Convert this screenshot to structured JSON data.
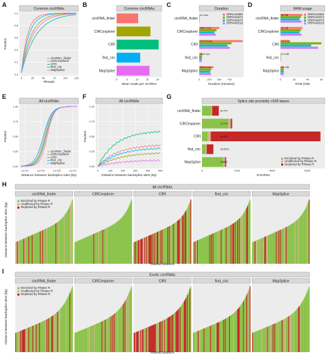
{
  "panels": {
    "A": {
      "letter": "A",
      "strip": "Common circRNAs",
      "ylabel": "Fraction",
      "xlabel": "#Reads",
      "yticks": [
        "0.0",
        "0.2",
        "0.4",
        "0.6",
        "0.8",
        "1.0"
      ],
      "xticks": [
        "0",
        "25",
        "50",
        "75",
        "100",
        "125"
      ],
      "legend": [
        "circRNA_finder",
        "CIRCexplorer",
        "CIRI",
        "find_circ",
        "MapSplice"
      ]
    },
    "B": {
      "letter": "B",
      "strip": "Common circRNAs",
      "xlabel": "Mean reads per circRNA",
      "categories": [
        "circRNA_finder",
        "CIRCexplorer",
        "CIRI",
        "find_circ",
        "MapSplice"
      ],
      "xticks": [
        "0",
        "5",
        "10",
        "15",
        "20"
      ]
    },
    "C": {
      "letter": "C",
      "strip": "Duration",
      "xlabel": "Duration (minutes)",
      "categories": [
        "circRNA_finder",
        "CIRCexplorer",
        "CIRI",
        "find_circ",
        "MapSplice"
      ],
      "xticks": [
        "0",
        "250",
        "500",
        "750"
      ],
      "bar_labels": [
        "4.2 min",
        "498.2 min",
        "1074.8 min",
        "78.9 min",
        "354.3 min"
      ],
      "legend": [
        "SRR444655",
        "SRR444674",
        "SRR444975",
        "SRR445016"
      ]
    },
    "D": {
      "letter": "D",
      "strip": "RAM usage",
      "xlabel": "RAM (GB)",
      "categories": [
        "circRNA_finder",
        "CIRCexplorer",
        "CIRI",
        "find_circ",
        "MapSplice"
      ],
      "xticks": [
        "0",
        "20",
        "40",
        "60"
      ],
      "bar_labels": [
        "32 GB",
        "32 GB",
        "12.3 GB",
        "0.4 GB",
        "4.9 GB"
      ],
      "legend": [
        "SRR444655",
        "SRR444674",
        "SRR444975",
        "SRR445016"
      ]
    },
    "E": {
      "letter": "E",
      "strip": "All circRNAs",
      "ylabel": "Fraction",
      "xlabel": "Distance between backsplice sites (bp)",
      "yticks": [
        "0.00",
        "0.25",
        "0.50",
        "0.75",
        "1.00"
      ],
      "xticks": [
        "1e+01",
        "1e+03",
        "1e+05",
        "1e+07"
      ],
      "legend": [
        "circRNA_finder",
        "CIRCexplorer",
        "CIRI",
        "find_circ",
        "MapSplice"
      ]
    },
    "F": {
      "letter": "F",
      "strip": "All circRNAs",
      "ylabel": "Fraction",
      "xlabel": "Distance between backsplice sites (bp)",
      "yticks": [
        "0.00",
        "0.25",
        "0.50",
        "0.75",
        "1.00"
      ],
      "xticks": [
        "0",
        "100",
        "200",
        "300",
        "400",
        "500"
      ]
    },
    "G": {
      "letter": "G",
      "strip": "Splice site proximity <500 bases",
      "xlabel": "#circRNA",
      "categories": [
        "circRNA_finder",
        "CIRCexplorer",
        "CIRI",
        "find_circ",
        "MapSplice"
      ],
      "xticks": [
        "0",
        "2000",
        "4000",
        "6000"
      ],
      "bar_labels": [
        "40.7%",
        "6.77%",
        "60.4%",
        "43.51%",
        "5.89%"
      ],
      "legend": [
        "Enriched by RNase R",
        "Unaffected by RNase R",
        "Depleted by RNase R"
      ]
    },
    "H": {
      "letter": "H",
      "title": "All circRNAs",
      "ylabel": "Distance between backsplice sites (bp)",
      "xlabel": "Ranked distance",
      "facets": [
        "circRNA_finder",
        "CIRCexplorer",
        "CIRI",
        "find_circ",
        "MapSplice"
      ],
      "legend": [
        "Enriched by RNase R",
        "Unaffected by RNase R",
        "Depleted by RNase R"
      ]
    },
    "I": {
      "letter": "I",
      "title": "Exotic circRNAs",
      "ylabel": "Distance between backsplice sites (bp)",
      "xlabel": "Ranked distance",
      "facets": [
        "circRNA_finder",
        "CIRCexplorer",
        "CIRI",
        "find_circ",
        "MapSplice"
      ],
      "legend": [
        "Enriched by RNase R",
        "Unaffected by RNase R",
        "Depleted by RNase R"
      ]
    }
  },
  "colors": {
    "tool": [
      "#f8766d",
      "#a3a500",
      "#00bf7d",
      "#00b0f6",
      "#e76bf3"
    ],
    "sample": [
      "#f8766d",
      "#7cae00",
      "#00bfc4",
      "#c77cff"
    ],
    "enriched": "#8bc34a",
    "unaffected": "#d2b48c",
    "depleted": "#c62828"
  },
  "chart_data": [
    {
      "type": "bar",
      "panel": "B",
      "categories": [
        "circRNA_finder",
        "CIRCexplorer",
        "CIRI",
        "find_circ",
        "MapSplice"
      ],
      "values": [
        10.5,
        16.5,
        20.5,
        11.5,
        16.0
      ],
      "xlabel": "Mean reads per circRNA",
      "xlim": [
        0,
        22
      ]
    },
    {
      "type": "bar",
      "panel": "C",
      "categories": [
        "circRNA_finder",
        "CIRCexplorer",
        "CIRI",
        "find_circ",
        "MapSplice"
      ],
      "series": [
        {
          "name": "SRR444655",
          "values": [
            4.2,
            498.2,
            1074.8,
            78.9,
            354.3
          ]
        },
        {
          "name": "SRR444674",
          "values": [
            3.8,
            430,
            800,
            70,
            300
          ]
        },
        {
          "name": "SRR444975",
          "values": [
            3.5,
            380,
            700,
            62,
            270
          ]
        },
        {
          "name": "SRR445016",
          "values": [
            3.9,
            410,
            760,
            66,
            290
          ]
        }
      ],
      "xlabel": "Duration (minutes)",
      "xlim": [
        0,
        1100
      ]
    },
    {
      "type": "bar",
      "panel": "D",
      "categories": [
        "circRNA_finder",
        "CIRCexplorer",
        "CIRI",
        "find_circ",
        "MapSplice"
      ],
      "series": [
        {
          "name": "SRR444655",
          "values": [
            32,
            32,
            12.3,
            0.4,
            4.9
          ]
        },
        {
          "name": "SRR444674",
          "values": [
            30,
            30,
            60,
            0.4,
            4.9
          ]
        },
        {
          "name": "SRR444975",
          "values": [
            28,
            28,
            45,
            0.4,
            4.9
          ]
        },
        {
          "name": "SRR445016",
          "values": [
            31,
            31,
            55,
            0.4,
            4.9
          ]
        }
      ],
      "xlabel": "RAM (GB)",
      "xlim": [
        0,
        65
      ]
    },
    {
      "type": "bar",
      "panel": "G",
      "categories": [
        "circRNA_finder",
        "CIRCexplorer",
        "CIRI",
        "find_circ",
        "MapSplice"
      ],
      "series": [
        {
          "name": "Enriched by RNase R",
          "values": [
            520,
            1500,
            320,
            230,
            1200
          ]
        },
        {
          "name": "Unaffected by RNase R",
          "values": [
            60,
            140,
            180,
            40,
            120
          ]
        },
        {
          "name": "Depleted by RNase R",
          "values": [
            380,
            80,
            6250,
            380,
            60
          ]
        }
      ],
      "xlabel": "#circRNA",
      "xlim": [
        0,
        7000
      ]
    }
  ]
}
